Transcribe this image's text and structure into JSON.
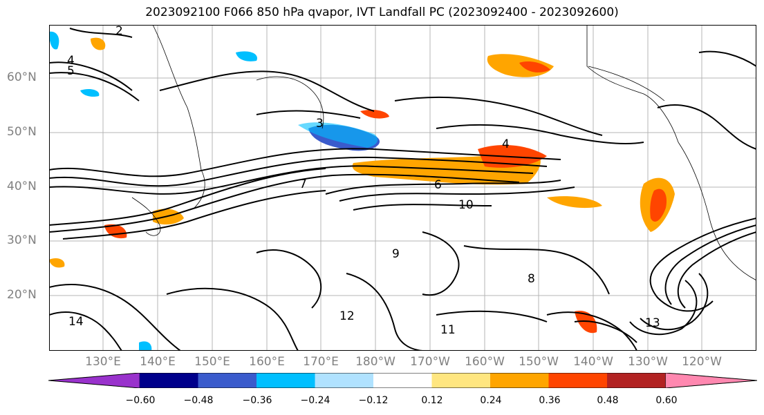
{
  "title": "2023092100 F066 850 hPa qvapor, IVT Landfall PC (2023092400 - 2023092600)",
  "map": {
    "lat_labels": [
      "60°N",
      "50°N",
      "40°N",
      "30°N",
      "20°N"
    ],
    "lon_labels": [
      "130°E",
      "140°E",
      "150°E",
      "160°E",
      "170°E",
      "180°W",
      "170°W",
      "160°W",
      "150°W",
      "140°W",
      "130°W",
      "120°W"
    ],
    "contour_labels": [
      "2",
      "4",
      "5",
      "3",
      "4",
      "6",
      "7",
      "10",
      "11",
      "12",
      "13",
      "14",
      "9",
      "8"
    ]
  },
  "colorbar": {
    "tick_labels": [
      "−0.60",
      "−0.48",
      "−0.36",
      "−0.24",
      "−0.12",
      "0.12",
      "0.24",
      "0.36",
      "0.48",
      "0.60"
    ],
    "colors": [
      "#9932cc",
      "#00008b",
      "#3a5bcc",
      "#00bfff",
      "#b0e2ff",
      "#ffffff",
      "#ffe680",
      "#ffa500",
      "#ff4500",
      "#b22222",
      "#ff88b0"
    ]
  }
}
